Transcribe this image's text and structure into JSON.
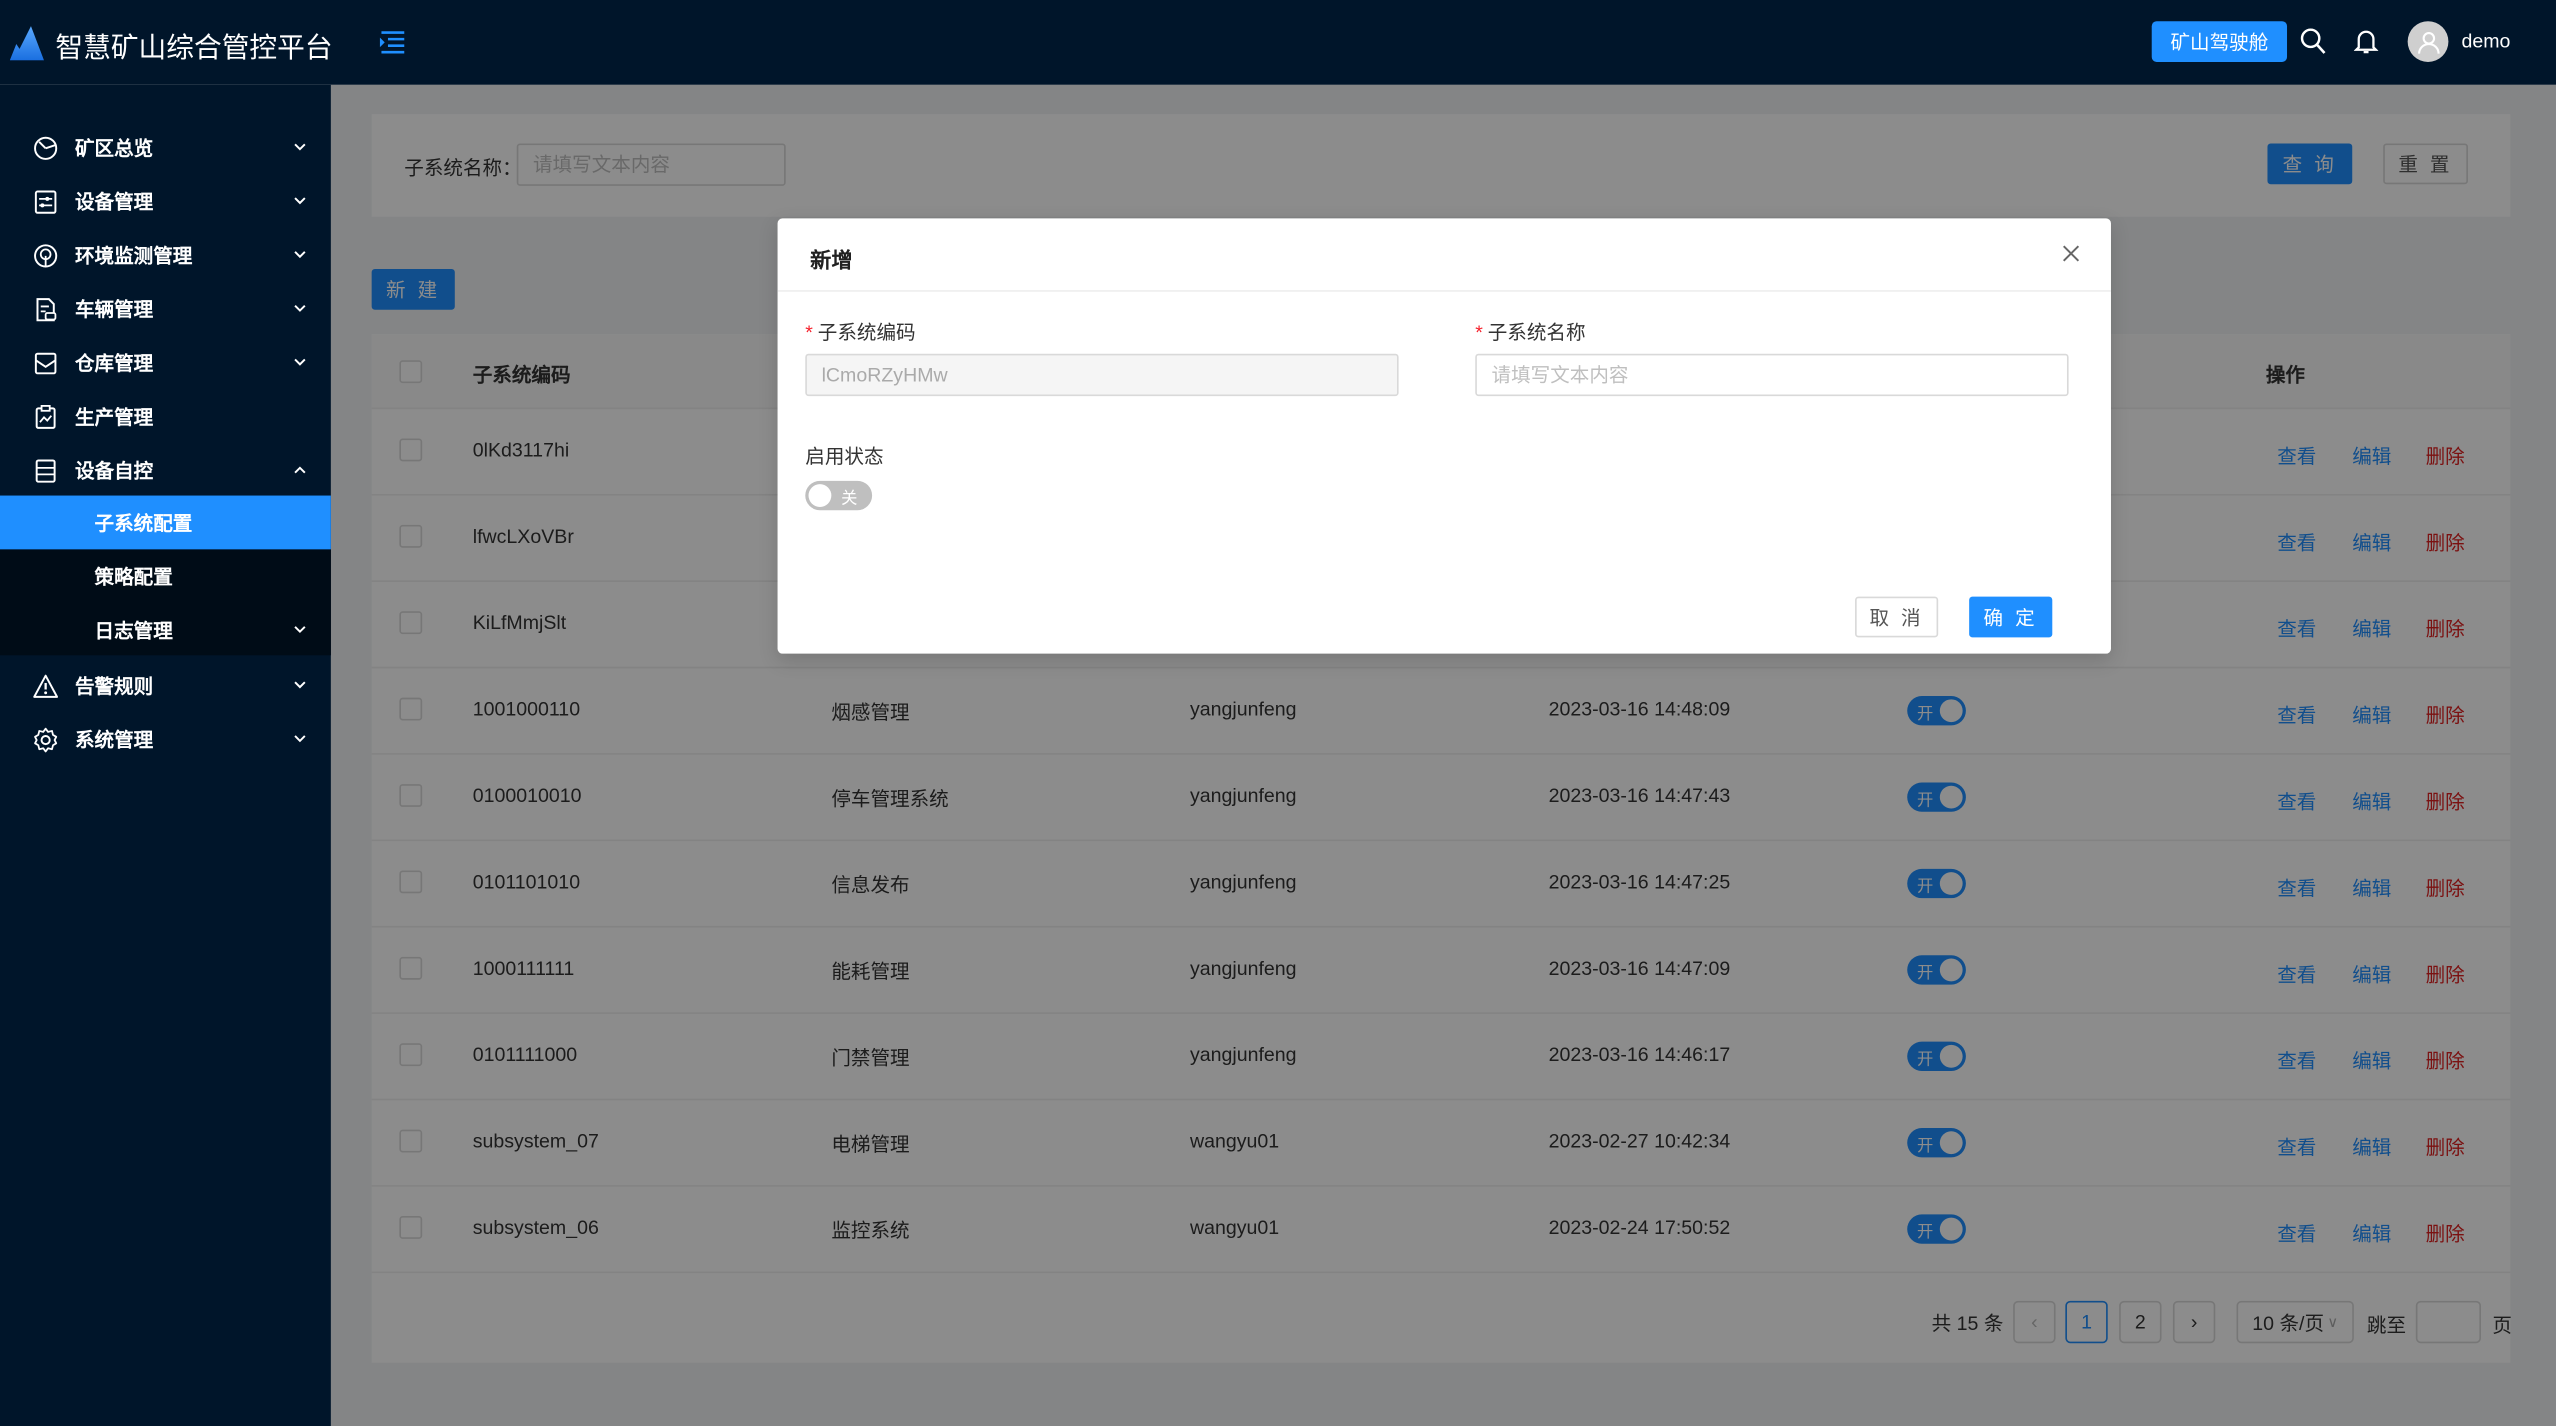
{
  "header": {
    "title": "智慧矿山综合管控平台",
    "cockpit_label": "矿山驾驶舱",
    "username": "demo",
    "brand_color": "#1f8fff",
    "bg_color": "#00152a"
  },
  "sidebar": {
    "items": [
      {
        "label": "矿区总览",
        "icon": "dashboard-icon",
        "chevron": "down"
      },
      {
        "label": "设备管理",
        "icon": "sliders-icon",
        "chevron": "down"
      },
      {
        "label": "环境监测管理",
        "icon": "tree-icon",
        "chevron": "down"
      },
      {
        "label": "车辆管理",
        "icon": "vehicle-doc-icon",
        "chevron": "down"
      },
      {
        "label": "仓库管理",
        "icon": "inbox-icon",
        "chevron": "down"
      },
      {
        "label": "生产管理",
        "icon": "clipboard-chart-icon",
        "chevron": ""
      },
      {
        "label": "设备自控",
        "icon": "server-icon",
        "chevron": "up",
        "expanded": true,
        "children": [
          {
            "label": "子系统配置",
            "active": true
          },
          {
            "label": "策略配置"
          },
          {
            "label": "日志管理",
            "chevron": "down"
          }
        ]
      },
      {
        "label": "告警规则",
        "icon": "warning-icon",
        "chevron": "down"
      },
      {
        "label": "系统管理",
        "icon": "gear-icon",
        "chevron": "down"
      }
    ]
  },
  "search": {
    "label": "子系统名称：",
    "placeholder": "请填写文本内容",
    "query_label": "查 询",
    "reset_label": "重 置"
  },
  "toolbar": {
    "new_label": "新 建"
  },
  "table": {
    "columns": [
      "子系统编码",
      "操作"
    ],
    "rows": [
      {
        "code": "0lKd3117hi",
        "name": "",
        "creator": "",
        "time": "",
        "status": ""
      },
      {
        "code": "lfwcLXoVBr",
        "name": "",
        "creator": "",
        "time": "",
        "status": ""
      },
      {
        "code": "KiLfMmjSlt",
        "name": "",
        "creator": "",
        "time": "",
        "status": ""
      },
      {
        "code": "1001000110",
        "name": "烟感管理",
        "creator": "yangjunfeng",
        "time": "2023-03-16 14:48:09",
        "status": "开"
      },
      {
        "code": "0100010010",
        "name": "停车管理系统",
        "creator": "yangjunfeng",
        "time": "2023-03-16 14:47:43",
        "status": "开"
      },
      {
        "code": "0101101010",
        "name": "信息发布",
        "creator": "yangjunfeng",
        "time": "2023-03-16 14:47:25",
        "status": "开"
      },
      {
        "code": "1000111111",
        "name": "能耗管理",
        "creator": "yangjunfeng",
        "time": "2023-03-16 14:47:09",
        "status": "开"
      },
      {
        "code": "0101111000",
        "name": "门禁管理",
        "creator": "yangjunfeng",
        "time": "2023-03-16 14:46:17",
        "status": "开"
      },
      {
        "code": "subsystem_07",
        "name": "电梯管理",
        "creator": "wangyu01",
        "time": "2023-02-27 10:42:34",
        "status": "开"
      },
      {
        "code": "subsystem_06",
        "name": "监控系统",
        "creator": "wangyu01",
        "time": "2023-02-24 17:50:52",
        "status": "开"
      }
    ],
    "actions": {
      "view": "查看",
      "edit": "编辑",
      "delete": "删除",
      "view_color": "#1f8fff",
      "delete_color": "#e02020"
    }
  },
  "pagination": {
    "total": "共 15 条",
    "pages": [
      "1",
      "2"
    ],
    "current": "1",
    "page_size": "10 条/页",
    "jump_label": "跳至",
    "page_suffix": "页"
  },
  "modal": {
    "title": "新增",
    "code_label": "子系统编码",
    "code_value": "lCmoRZyHMw",
    "name_label": "子系统名称",
    "name_placeholder": "请填写文本内容",
    "status_label": "启用状态",
    "status_off": "关",
    "cancel_label": "取 消",
    "ok_label": "确 定"
  }
}
